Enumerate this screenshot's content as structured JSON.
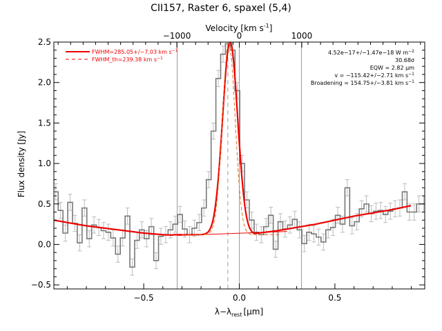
{
  "chart_data": {
    "type": "line",
    "title": "CII157, Raster 6, spaxel (5,4)",
    "xlabel": "λ−λ",
    "xlabel_sub": "rest",
    "xlabel_unit": "[μm]",
    "ylabel": "Flux density [Jy]",
    "top_axis_label": "Velocity [km s",
    "top_axis_label_sup": "-1",
    "top_axis_label_end": "]",
    "xlim": [
      -0.97,
      0.97
    ],
    "ylim": [
      -0.55,
      2.5
    ],
    "x_ticks": [
      {
        "value": -0.5,
        "label": "−0.5"
      },
      {
        "value": 0.0,
        "label": "0.0"
      },
      {
        "value": 0.5,
        "label": "0.5"
      }
    ],
    "y_ticks": [
      {
        "value": -0.5,
        "label": "−0.5"
      },
      {
        "value": 0.0,
        "label": "0.0"
      },
      {
        "value": 0.5,
        "label": "0.5"
      },
      {
        "value": 1.0,
        "label": "1.0"
      },
      {
        "value": 1.5,
        "label": "1.5"
      },
      {
        "value": 2.0,
        "label": "2.0"
      },
      {
        "value": 2.5,
        "label": "2.5"
      }
    ],
    "top_ticks": [
      {
        "value": -1000,
        "label": "−1000"
      },
      {
        "value": 0,
        "label": "0"
      },
      {
        "value": 1000,
        "label": "1000"
      }
    ],
    "velocity_per_micron": 3060,
    "vertical_lines": [
      -0.325,
      0.0,
      0.325
    ],
    "dashed_vertical_line": -0.06,
    "legend": [
      {
        "label": "FWHM=285.05+/−7.03 km s",
        "sup": "−1",
        "style": "solid"
      },
      {
        "label": "FWHM_th=239.38 km s",
        "sup": "−1",
        "style": "dashed"
      }
    ],
    "annotations": [
      {
        "text": "4.52e−17+/−1.47e−18 W m",
        "sup": "−2"
      },
      {
        "text": "30.68σ",
        "sup": ""
      },
      {
        "text": "EQW = 2.82 μm",
        "sup": ""
      },
      {
        "text": "v = −115.42+/−2.71 km s",
        "sup": "−1"
      },
      {
        "text": "Broadening = 154.75+/−3.81 km s",
        "sup": "−1"
      }
    ],
    "spectrum": {
      "name": "data",
      "x": [
        -0.96,
        -0.935,
        -0.91,
        -0.885,
        -0.86,
        -0.835,
        -0.81,
        -0.785,
        -0.76,
        -0.735,
        -0.71,
        -0.685,
        -0.66,
        -0.635,
        -0.61,
        -0.585,
        -0.56,
        -0.535,
        -0.51,
        -0.485,
        -0.46,
        -0.435,
        -0.41,
        -0.385,
        -0.36,
        -0.335,
        -0.31,
        -0.285,
        -0.26,
        -0.235,
        -0.21,
        -0.185,
        -0.16,
        -0.135,
        -0.11,
        -0.085,
        -0.06,
        -0.035,
        -0.01,
        0.015,
        0.04,
        0.065,
        0.09,
        0.115,
        0.14,
        0.165,
        0.19,
        0.215,
        0.24,
        0.265,
        0.29,
        0.315,
        0.34,
        0.365,
        0.39,
        0.415,
        0.44,
        0.465,
        0.49,
        0.515,
        0.54,
        0.565,
        0.59,
        0.615,
        0.64,
        0.665,
        0.69,
        0.715,
        0.74,
        0.765,
        0.79,
        0.815,
        0.84,
        0.865,
        0.89,
        0.915,
        0.94,
        0.965
      ],
      "y": [
        0.65,
        0.42,
        0.14,
        0.52,
        0.26,
        0.02,
        0.45,
        0.07,
        0.24,
        0.21,
        0.17,
        0.15,
        0.08,
        -0.12,
        0.08,
        0.35,
        -0.28,
        0.05,
        0.18,
        0.07,
        0.22,
        -0.2,
        0.1,
        0.12,
        0.18,
        0.25,
        0.37,
        0.19,
        0.12,
        0.2,
        0.27,
        0.45,
        0.8,
        1.4,
        2.05,
        2.35,
        2.48,
        2.4,
        1.9,
        1.0,
        0.55,
        0.3,
        0.15,
        0.12,
        0.22,
        0.36,
        -0.06,
        0.28,
        0.19,
        0.24,
        0.31,
        0.18,
        0.01,
        0.15,
        0.13,
        0.09,
        0.03,
        0.18,
        0.21,
        0.36,
        0.25,
        0.7,
        0.23,
        0.28,
        0.44,
        0.5,
        0.38,
        0.41,
        0.42,
        0.37,
        0.41,
        0.44,
        0.45,
        0.65,
        0.4,
        0.4,
        0.5,
        0.5
      ],
      "err": 0.1
    },
    "continuum": {
      "x": [
        -0.97,
        -0.9,
        -0.8,
        -0.7,
        -0.6,
        -0.5,
        -0.4,
        -0.3,
        -0.2,
        -0.1,
        0.0,
        0.1,
        0.2,
        0.3,
        0.4,
        0.5,
        0.6,
        0.7,
        0.8,
        0.9
      ],
      "y": [
        0.3,
        0.27,
        0.23,
        0.2,
        0.17,
        0.14,
        0.12,
        0.11,
        0.11,
        0.11,
        0.12,
        0.14,
        0.17,
        0.21,
        0.25,
        0.3,
        0.35,
        0.39,
        0.43,
        0.48
      ]
    },
    "baseline_line": {
      "x": [
        -0.32,
        0.25
      ],
      "y": [
        0.11,
        0.16
      ]
    },
    "gaussian_fit": {
      "center": -0.048,
      "fwhm": 0.093,
      "peak": 2.38
    },
    "gaussian_thermal": {
      "center": -0.055,
      "fwhm": 0.078,
      "peak": 2.38
    }
  }
}
